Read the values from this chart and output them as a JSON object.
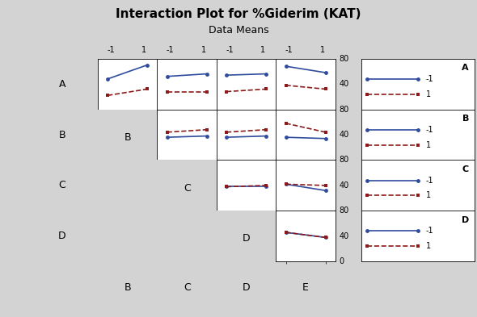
{
  "title": "Interaction Plot for %Giderim (KAT)",
  "subtitle": "Data Means",
  "variables": [
    "A",
    "B",
    "C",
    "D",
    "E"
  ],
  "x_ticks": [
    -1,
    1
  ],
  "y_range": [
    0,
    80
  ],
  "y_ticks": [
    40,
    80
  ],
  "blue_color": "#2e4b9e",
  "red_color": "#8b1a1a",
  "bg_color": "#d3d3d3",
  "plot_bg": "#ffffff",
  "interaction_data": {
    "0_0": {
      "blue": [
        48,
        70
      ],
      "red": [
        22,
        32
      ]
    },
    "0_1": {
      "blue": [
        52,
        56
      ],
      "red": [
        28,
        28
      ]
    },
    "0_2": {
      "blue": [
        54,
        56
      ],
      "red": [
        28,
        32
      ]
    },
    "0_3": {
      "blue": [
        68,
        58
      ],
      "red": [
        38,
        32
      ]
    },
    "1_1": {
      "blue": [
        36,
        38
      ],
      "red": [
        44,
        48
      ]
    },
    "1_2": {
      "blue": [
        36,
        38
      ],
      "red": [
        44,
        48
      ]
    },
    "1_3": {
      "blue": [
        36,
        34
      ],
      "red": [
        58,
        44
      ]
    },
    "2_2": {
      "blue": [
        38,
        38
      ],
      "red": [
        38,
        40
      ]
    },
    "2_3": {
      "blue": [
        42,
        32
      ],
      "red": [
        42,
        40
      ]
    },
    "3_3": {
      "blue": [
        46,
        38
      ],
      "red": [
        46,
        38
      ]
    }
  },
  "row_labels": [
    "A",
    "B",
    "C",
    "D"
  ],
  "col_labels": [
    "B",
    "C",
    "D",
    "E"
  ],
  "diag_labels": [
    "B",
    "C",
    "D"
  ],
  "legend_vars": [
    "A",
    "B",
    "C",
    "D"
  ],
  "title_fontsize": 11,
  "subtitle_fontsize": 9,
  "label_fontsize": 9,
  "tick_fontsize": 7,
  "legend_fontsize": 8
}
